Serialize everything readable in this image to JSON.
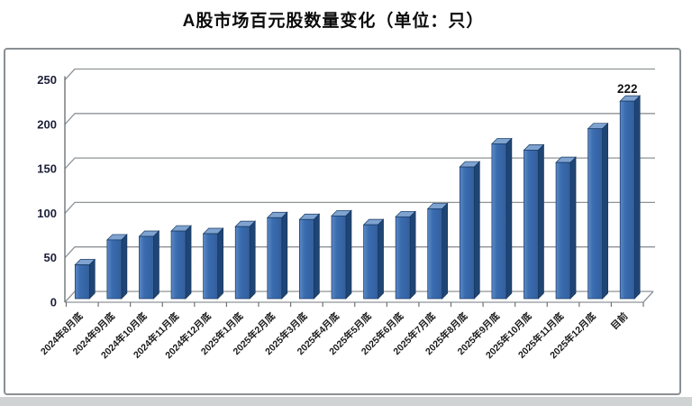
{
  "page": {
    "title": "A股市场百元股数量变化（单位：只）"
  },
  "chart_data": {
    "type": "bar",
    "style": "pseudo-3d-column",
    "title": "A股市场百元股数量变化（单位：只）",
    "unit": "只",
    "categories": [
      "2024年8月底",
      "2024年9月底",
      "2024年10月底",
      "2024年11月底",
      "2024年12月底",
      "2025年1月底",
      "2025年2月底",
      "2025年3月底",
      "2025年4月底",
      "2025年5月底",
      "2025年6月底",
      "2025年7月底",
      "2025年8月底",
      "2025年9月底",
      "2025年10月底",
      "2025年11月底",
      "2025年12月底",
      "目前"
    ],
    "values": [
      38,
      66,
      70,
      76,
      73,
      81,
      91,
      89,
      93,
      83,
      92,
      101,
      148,
      174,
      167,
      153,
      191,
      222
    ],
    "yticks": [
      0,
      50,
      100,
      150,
      200,
      250
    ],
    "ylim": [
      0,
      250
    ],
    "grid": true,
    "legend": "none",
    "category_label_rotation": -45,
    "data_labels": [
      {
        "index": 17,
        "text": "222"
      }
    ],
    "colors": {
      "bar_front": "#3a6cb0",
      "bar_front_light": "#5d8ac6",
      "bar_front_dark": "#335f9c",
      "bar_side": "#1f4575",
      "bar_top": "#7fa3d0",
      "bar_edge": "#16375f",
      "gridline": "#8f9396",
      "axis": "#6f7477",
      "tick_label": "#1c1f38",
      "category_label": "#1a1a1a",
      "data_label": "#111111",
      "frame_border": "#8a9094",
      "footer_strip": "#d0d3d4",
      "background": "#ffffff"
    }
  }
}
